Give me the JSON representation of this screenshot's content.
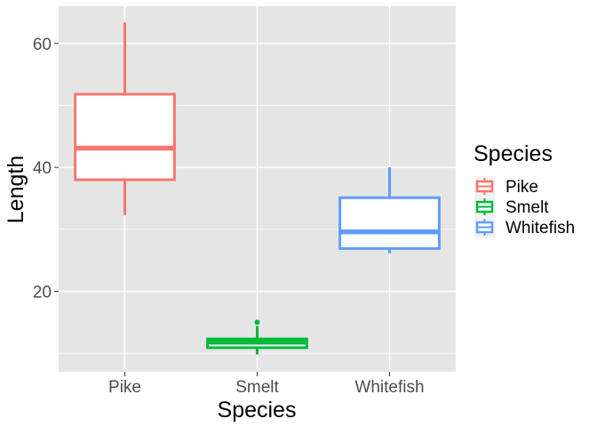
{
  "chart_data": {
    "type": "boxplot",
    "xlabel": "Species",
    "ylabel": "Length",
    "categories": [
      "Pike",
      "Smelt",
      "Whitefish"
    ],
    "ylim": [
      7.0,
      66.0
    ],
    "yticks": [
      20,
      40,
      60
    ],
    "grid": true,
    "legend": {
      "title": "Species",
      "position": "right"
    },
    "boxes": [
      {
        "name": "Pike",
        "color": "#F8766D",
        "whisker_low": 32.3,
        "q1": 38.0,
        "median": 43.1,
        "q3": 51.8,
        "whisker_high": 63.4,
        "outliers": []
      },
      {
        "name": "Smelt",
        "color": "#00BA38",
        "whisker_low": 9.8,
        "q1": 10.9,
        "median": 11.8,
        "q3": 12.3,
        "whisker_high": 14.4,
        "outliers": [
          15.0
        ]
      },
      {
        "name": "Whitefish",
        "color": "#619CFF",
        "whisker_low": 26.1,
        "q1": 26.9,
        "median": 29.6,
        "q3": 35.1,
        "whisker_high": 40.0,
        "outliers": []
      }
    ]
  },
  "colors": {
    "panel": "#E5E5E5",
    "grid": "#FFFFFF"
  }
}
